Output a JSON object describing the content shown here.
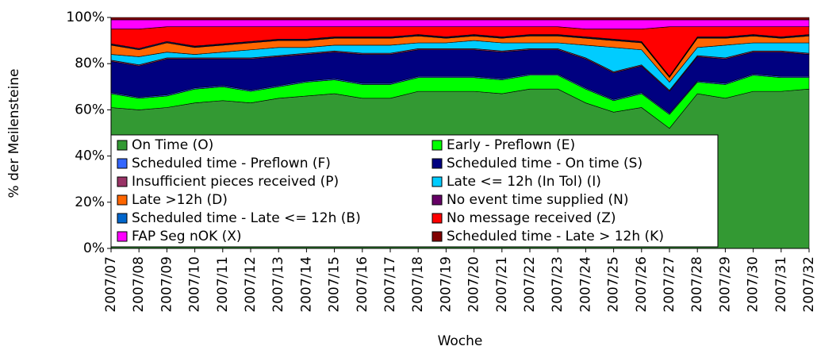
{
  "chart_data": {
    "type": "stacked_area",
    "x_label": "Woche",
    "y_label": "% der Meilensteine",
    "categories": [
      "2007/07",
      "2007/08",
      "2007/09",
      "2007/10",
      "2007/11",
      "2007/12",
      "2007/13",
      "2007/14",
      "2007/15",
      "2007/16",
      "2007/17",
      "2007/18",
      "2007/19",
      "2007/20",
      "2007/21",
      "2007/22",
      "2007/23",
      "2007/24",
      "2007/25",
      "2007/26",
      "2007/27",
      "2007/28",
      "2007/29",
      "2007/30",
      "2007/31",
      "2007/32"
    ],
    "series": [
      {
        "name": "On Time (O)",
        "color": "#339933",
        "values": [
          61,
          60,
          61,
          63,
          64,
          63,
          65,
          66,
          67,
          65,
          65,
          68,
          68,
          68,
          67,
          69,
          69,
          63,
          59,
          61,
          52,
          67,
          65,
          68,
          68,
          69
        ]
      },
      {
        "name": "Early - Preflown (E)",
        "color": "#00ff00",
        "values": [
          6,
          5,
          5,
          6,
          6,
          5,
          5,
          6,
          6,
          6,
          6,
          6,
          6,
          6,
          6,
          6,
          6,
          6,
          5,
          6,
          6,
          5,
          6,
          7,
          6,
          5
        ]
      },
      {
        "name": "Scheduled time - Preflown (F)",
        "color": "#3366ff",
        "values": [
          0.5,
          0.5,
          0.5,
          0.5,
          0.5,
          0.5,
          0.5,
          0.5,
          0.5,
          0.5,
          0.5,
          0.5,
          0.5,
          0.5,
          0.5,
          0.5,
          0.5,
          0.5,
          0.5,
          0.5,
          0.5,
          0.5,
          0.5,
          0.5,
          0.5,
          0.5
        ]
      },
      {
        "name": "Scheduled time - On time (S)",
        "color": "#000080",
        "values": [
          13.5,
          13.5,
          15.5,
          12.5,
          11.5,
          13.5,
          12.5,
          11.5,
          11.5,
          12.5,
          12.5,
          11.5,
          11.5,
          11.5,
          11.5,
          10.5,
          10.5,
          12.5,
          11.5,
          11.5,
          9.5,
          10.5,
          10.5,
          9.5,
          10.5,
          9.5
        ]
      },
      {
        "name": "Insufficient pieces received (P)",
        "color": "#993366",
        "values": [
          0.5,
          0.5,
          0.5,
          0.5,
          0.5,
          0.5,
          0.5,
          0.5,
          0.5,
          0.5,
          0.5,
          0.5,
          0.5,
          0.5,
          0.5,
          0.5,
          0.5,
          0.5,
          0.5,
          0.5,
          0.5,
          0.5,
          0.5,
          0.5,
          0.5,
          0.5
        ]
      },
      {
        "name": "Late <= 12h (In Tol) (I)",
        "color": "#00ccff",
        "values": [
          2.5,
          3.5,
          2.5,
          1.5,
          2.5,
          3.5,
          3.5,
          2.5,
          2.5,
          3.5,
          3.5,
          2.5,
          2.5,
          3.5,
          3.5,
          2.5,
          2.5,
          5.5,
          10.5,
          6.5,
          3.5,
          3.5,
          5.5,
          3.5,
          3.5,
          4.5
        ]
      },
      {
        "name": "Late >12h (D)",
        "color": "#ff6600",
        "values": [
          4,
          3,
          4,
          3,
          3,
          3,
          3,
          3,
          3,
          3,
          3,
          3,
          2,
          2,
          2,
          3,
          3,
          3,
          3,
          3,
          2,
          4,
          3,
          3,
          2,
          3
        ]
      },
      {
        "name": "No event time supplied (N)",
        "color": "#660066",
        "values": [
          0.3,
          0.3,
          0.3,
          0.3,
          0.3,
          0.3,
          0.3,
          0.3,
          0.3,
          0.3,
          0.3,
          0.3,
          0.3,
          0.3,
          0.3,
          0.3,
          0.3,
          0.3,
          0.3,
          0.3,
          0.3,
          0.3,
          0.3,
          0.3,
          0.3,
          0.3
        ]
      },
      {
        "name": "Scheduled time - Late <= 12h (B)",
        "color": "#0066cc",
        "values": [
          0.3,
          0.3,
          0.3,
          0.3,
          0.3,
          0.3,
          0.3,
          0.3,
          0.3,
          0.3,
          0.3,
          0.3,
          0.3,
          0.3,
          0.3,
          0.3,
          0.3,
          0.3,
          0.3,
          0.3,
          0.3,
          0.3,
          0.3,
          0.3,
          0.3,
          0.3
        ]
      },
      {
        "name": "No message received (Z)",
        "color": "#ff0000",
        "values": [
          6.4,
          8.4,
          6.4,
          8.4,
          7.4,
          6.4,
          5.4,
          5.4,
          4.4,
          4.4,
          4.4,
          3.4,
          4.4,
          3.4,
          4.4,
          3.4,
          3.4,
          3.4,
          4.4,
          5.4,
          21.4,
          4.4,
          4.4,
          3.4,
          4.4,
          3.4
        ]
      },
      {
        "name": "FAP Seg nOK (X)",
        "color": "#ff00ff",
        "values": [
          4,
          4,
          3,
          3,
          3,
          3,
          3,
          3,
          3,
          3,
          3,
          3,
          3,
          3,
          3,
          3,
          3,
          4,
          4,
          4,
          3,
          3,
          3,
          3,
          3,
          3
        ]
      },
      {
        "name": "Scheduled time - Late > 12h (K)",
        "color": "#800000",
        "values": [
          1,
          1,
          1,
          1,
          1,
          1,
          1,
          1,
          1,
          1,
          1,
          1,
          1,
          1,
          1,
          1,
          1,
          1,
          1,
          1,
          1,
          1,
          1,
          1,
          1,
          1
        ]
      }
    ],
    "ylim": [
      0,
      100
    ],
    "yticks": [
      {
        "value": 0,
        "label": "0%"
      },
      {
        "value": 20,
        "label": "20%"
      },
      {
        "value": 40,
        "label": "40%"
      },
      {
        "value": 60,
        "label": "60%"
      },
      {
        "value": 80,
        "label": "80%"
      },
      {
        "value": 100,
        "label": "100%"
      }
    ],
    "grid": false,
    "legend": "lower left"
  }
}
